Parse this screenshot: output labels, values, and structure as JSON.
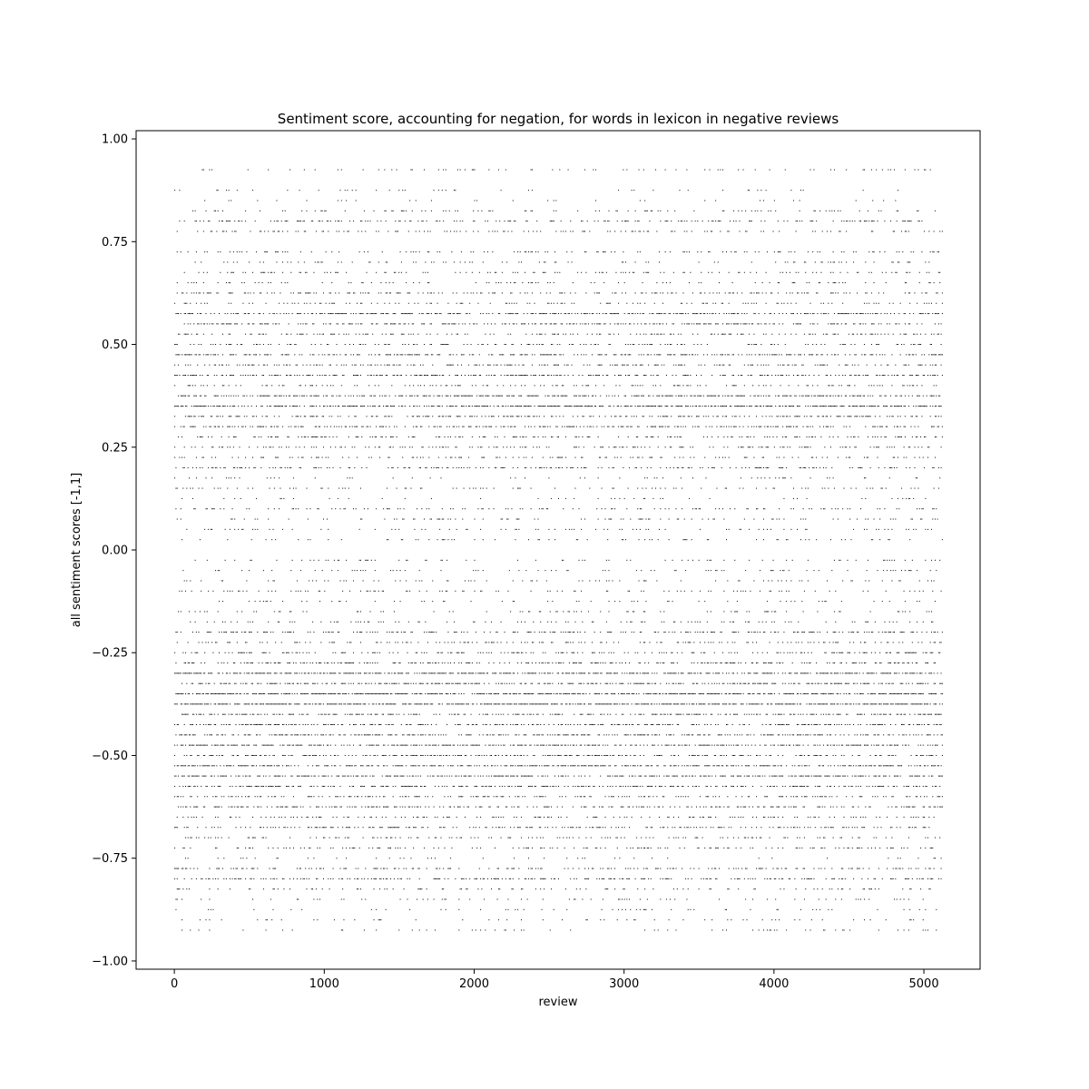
{
  "chart_data": {
    "type": "scatter",
    "title": "Sentiment score, accounting for negation, for words in lexicon in negative reviews",
    "xlabel": "review",
    "ylabel": "all sentiment scores [-1,1]",
    "xlim": [
      -255,
      5375
    ],
    "ylim": [
      -1.02,
      1.02
    ],
    "x_ticks": [
      0,
      1000,
      2000,
      3000,
      4000,
      5000
    ],
    "x_tick_labels": [
      "0",
      "1000",
      "2000",
      "3000",
      "4000",
      "5000"
    ],
    "y_ticks": [
      -1.0,
      -0.75,
      -0.5,
      -0.25,
      0.0,
      0.25,
      0.5,
      0.75,
      1.0
    ],
    "y_tick_labels": [
      "−1.00",
      "−0.75",
      "−0.50",
      "−0.25",
      "0.00",
      "0.25",
      "0.50",
      "0.75",
      "1.00"
    ],
    "grid": false,
    "legend": "none",
    "marker_color": "#000000",
    "review_range": [
      0,
      5120
    ],
    "score_levels": [
      {
        "y": 0.925,
        "density": 0.11
      },
      {
        "y": 0.875,
        "density": 0.06
      },
      {
        "y": 0.85,
        "density": 0.05
      },
      {
        "y": 0.825,
        "density": 0.14
      },
      {
        "y": 0.8,
        "density": 0.28
      },
      {
        "y": 0.775,
        "density": 0.22
      },
      {
        "y": 0.725,
        "density": 0.2
      },
      {
        "y": 0.7,
        "density": 0.16
      },
      {
        "y": 0.675,
        "density": 0.2
      },
      {
        "y": 0.65,
        "density": 0.14
      },
      {
        "y": 0.625,
        "density": 0.3
      },
      {
        "y": 0.6,
        "density": 0.22
      },
      {
        "y": 0.575,
        "density": 0.5
      },
      {
        "y": 0.55,
        "density": 0.4
      },
      {
        "y": 0.525,
        "density": 0.32
      },
      {
        "y": 0.5,
        "density": 0.3
      },
      {
        "y": 0.475,
        "density": 0.48
      },
      {
        "y": 0.45,
        "density": 0.34
      },
      {
        "y": 0.425,
        "density": 0.42
      },
      {
        "y": 0.4,
        "density": 0.24
      },
      {
        "y": 0.375,
        "density": 0.55
      },
      {
        "y": 0.35,
        "density": 0.62
      },
      {
        "y": 0.325,
        "density": 0.42
      },
      {
        "y": 0.3,
        "density": 0.44
      },
      {
        "y": 0.275,
        "density": 0.3
      },
      {
        "y": 0.25,
        "density": 0.26
      },
      {
        "y": 0.225,
        "density": 0.22
      },
      {
        "y": 0.2,
        "density": 0.32
      },
      {
        "y": 0.175,
        "density": 0.1
      },
      {
        "y": 0.15,
        "density": 0.14
      },
      {
        "y": 0.125,
        "density": 0.08
      },
      {
        "y": 0.1,
        "density": 0.2
      },
      {
        "y": 0.075,
        "density": 0.18
      },
      {
        "y": 0.05,
        "density": 0.12
      },
      {
        "y": 0.025,
        "density": 0.1
      },
      {
        "y": 0.0,
        "density": 0.0
      },
      {
        "y": -0.025,
        "density": 0.12
      },
      {
        "y": -0.05,
        "density": 0.14
      },
      {
        "y": -0.075,
        "density": 0.12
      },
      {
        "y": -0.1,
        "density": 0.18
      },
      {
        "y": -0.125,
        "density": 0.1
      },
      {
        "y": -0.15,
        "density": 0.14
      },
      {
        "y": -0.175,
        "density": 0.16
      },
      {
        "y": -0.2,
        "density": 0.34
      },
      {
        "y": -0.225,
        "density": 0.26
      },
      {
        "y": -0.25,
        "density": 0.3
      },
      {
        "y": -0.275,
        "density": 0.38
      },
      {
        "y": -0.3,
        "density": 0.62
      },
      {
        "y": -0.325,
        "density": 0.55
      },
      {
        "y": -0.35,
        "density": 0.7
      },
      {
        "y": -0.375,
        "density": 0.75
      },
      {
        "y": -0.4,
        "density": 0.42
      },
      {
        "y": -0.425,
        "density": 0.45
      },
      {
        "y": -0.45,
        "density": 0.5
      },
      {
        "y": -0.475,
        "density": 0.55
      },
      {
        "y": -0.5,
        "density": 0.42
      },
      {
        "y": -0.525,
        "density": 0.6
      },
      {
        "y": -0.55,
        "density": 0.55
      },
      {
        "y": -0.575,
        "density": 0.5
      },
      {
        "y": -0.6,
        "density": 0.32
      },
      {
        "y": -0.625,
        "density": 0.38
      },
      {
        "y": -0.65,
        "density": 0.25
      },
      {
        "y": -0.675,
        "density": 0.32
      },
      {
        "y": -0.7,
        "density": 0.22
      },
      {
        "y": -0.725,
        "density": 0.24
      },
      {
        "y": -0.75,
        "density": 0.08
      },
      {
        "y": -0.775,
        "density": 0.3
      },
      {
        "y": -0.8,
        "density": 0.35
      },
      {
        "y": -0.825,
        "density": 0.14
      },
      {
        "y": -0.85,
        "density": 0.12
      },
      {
        "y": -0.875,
        "density": 0.1
      },
      {
        "y": -0.9,
        "density": 0.08
      },
      {
        "y": -0.925,
        "density": 0.12
      }
    ]
  }
}
